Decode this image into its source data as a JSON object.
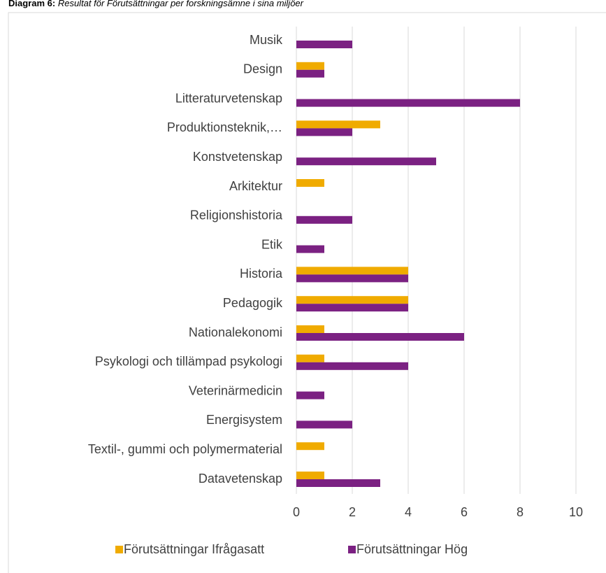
{
  "caption": {
    "label": "Diagram 6:",
    "text": "Resultat för Förutsättningar per forskningsämne i sina miljöer"
  },
  "chart_data": {
    "type": "barh",
    "categories": [
      "Musik",
      "Design",
      "Litteraturvetenskap",
      "Produktionsteknik,…",
      "Konstvetenskap",
      "Arkitektur",
      "Religionshistoria",
      "Etik",
      "Historia ",
      "Pedagogik",
      "Nationalekonomi",
      "Psykologi och tillämpad psykologi",
      "Veterinärmedicin ",
      "Energisystem",
      "Textil-, gummi och polymermaterial",
      "Datavetenskap"
    ],
    "series": [
      {
        "name": "Förutsättningar Ifrågasatt",
        "color": "#f0ab00",
        "values": [
          null,
          1,
          null,
          3,
          null,
          1,
          null,
          null,
          4,
          4,
          1,
          1,
          null,
          null,
          1,
          1
        ]
      },
      {
        "name": "Förutsättningar Hög",
        "color": "#7b2182",
        "values": [
          2,
          1,
          8,
          2,
          5,
          null,
          2,
          1,
          4,
          4,
          6,
          4,
          1,
          2,
          null,
          3
        ]
      }
    ],
    "xlim": [
      0,
      10
    ],
    "xticks": [
      0,
      2,
      4,
      6,
      8,
      10
    ],
    "grid": true,
    "legend": "bottom"
  }
}
